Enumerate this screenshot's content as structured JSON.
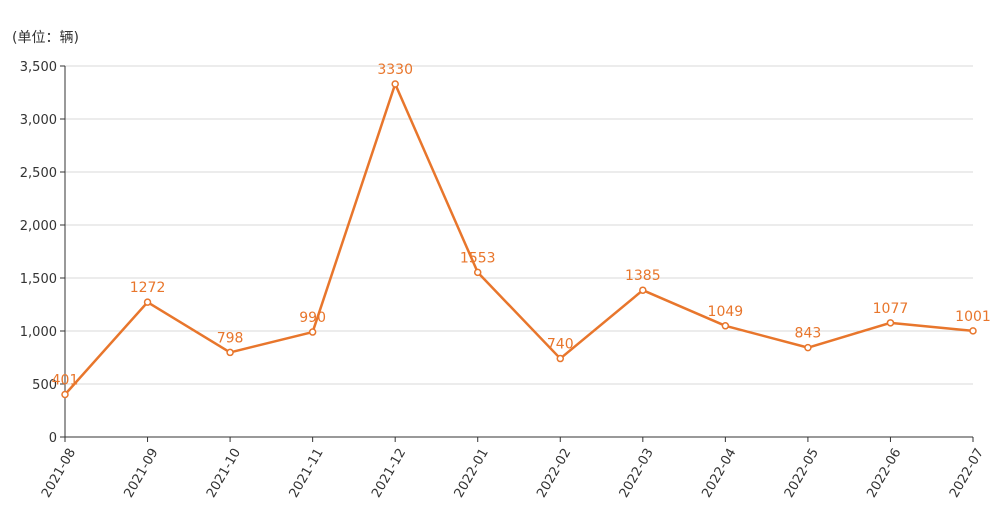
{
  "unit_label": "(单位：辆)",
  "chart_data": {
    "type": "line",
    "categories": [
      "2021-08",
      "2021-09",
      "2021-10",
      "2021-11",
      "2021-12",
      "2022-01",
      "2022-02",
      "2022-03",
      "2022-04",
      "2022-05",
      "2022-06",
      "2022-07"
    ],
    "series": [
      {
        "values": [
          401,
          1272,
          798,
          990,
          3330,
          1553,
          740,
          1385,
          1049,
          843,
          1077,
          1001
        ]
      }
    ],
    "ylim": [
      0,
      3500
    ],
    "yticks": [
      0,
      500,
      1000,
      1500,
      2000,
      2500,
      3000,
      3500
    ],
    "ytick_labels": [
      "0",
      "500",
      "1,000",
      "1,500",
      "2,000",
      "2,500",
      "3,000",
      "3,500"
    ],
    "grid": "horizontal",
    "colors": {
      "line": "#e8762c",
      "grid": "#d9d9d9",
      "axis": "#333333"
    }
  }
}
